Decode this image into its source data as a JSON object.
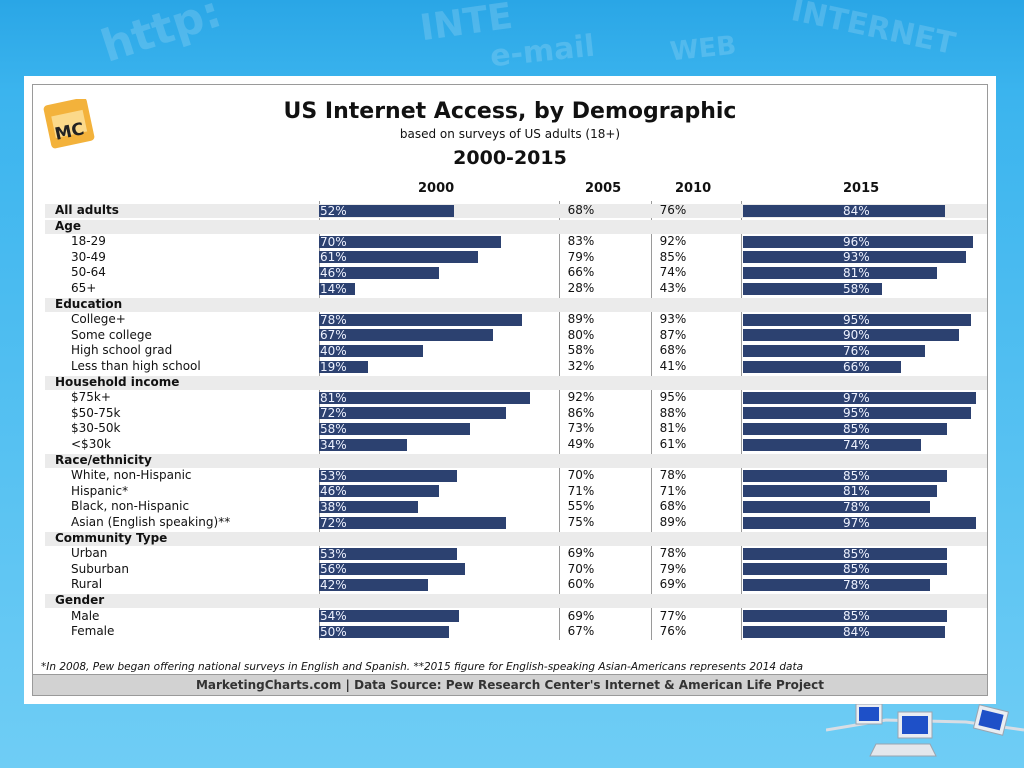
{
  "logo_text": "MC",
  "title": "US Internet Access, by Demographic",
  "subtitle": "based on surveys of US adults (18+)",
  "period": "2000-2015",
  "note": "*In 2008, Pew began offering national surveys in English and Spanish. **2015 figure for English-speaking Asian-Americans represents 2014 data",
  "footer": "MarketingCharts.com | Data Source: Pew Research Center's Internet & American Life Project",
  "colors": {
    "bar": "#2c4170",
    "group_row": "#ebebeb",
    "footer": "#d2d2d2"
  },
  "chart_data": {
    "type": "bar",
    "columns": [
      "2000",
      "2005",
      "2010",
      "2015"
    ],
    "rows": [
      {
        "label": "All adults",
        "kind": "top",
        "values": [
          "52%",
          "68%",
          "76%",
          "84%"
        ]
      },
      {
        "label": "Age",
        "kind": "group"
      },
      {
        "label": "18-29",
        "kind": "item",
        "values": [
          "70%",
          "83%",
          "92%",
          "96%"
        ]
      },
      {
        "label": "30-49",
        "kind": "item",
        "values": [
          "61%",
          "79%",
          "85%",
          "93%"
        ]
      },
      {
        "label": "50-64",
        "kind": "item",
        "values": [
          "46%",
          "66%",
          "74%",
          "81%"
        ]
      },
      {
        "label": "65+",
        "kind": "item",
        "values": [
          "14%",
          "28%",
          "43%",
          "58%"
        ]
      },
      {
        "label": "Education",
        "kind": "group"
      },
      {
        "label": "College+",
        "kind": "item",
        "values": [
          "78%",
          "89%",
          "93%",
          "95%"
        ]
      },
      {
        "label": "Some college",
        "kind": "item",
        "values": [
          "67%",
          "80%",
          "87%",
          "90%"
        ]
      },
      {
        "label": "High school grad",
        "kind": "item",
        "values": [
          "40%",
          "58%",
          "68%",
          "76%"
        ]
      },
      {
        "label": "Less than high school",
        "kind": "item",
        "values": [
          "19%",
          "32%",
          "41%",
          "66%"
        ]
      },
      {
        "label": "Household income",
        "kind": "group"
      },
      {
        "label": "$75k+",
        "kind": "item",
        "values": [
          "81%",
          "92%",
          "95%",
          "97%"
        ]
      },
      {
        "label": "$50-75k",
        "kind": "item",
        "values": [
          "72%",
          "86%",
          "88%",
          "95%"
        ]
      },
      {
        "label": "$30-50k",
        "kind": "item",
        "values": [
          "58%",
          "73%",
          "81%",
          "85%"
        ]
      },
      {
        "label": "<$30k",
        "kind": "item",
        "values": [
          "34%",
          "49%",
          "61%",
          "74%"
        ]
      },
      {
        "label": "Race/ethnicity",
        "kind": "group"
      },
      {
        "label": "White, non-Hispanic",
        "kind": "item",
        "values": [
          "53%",
          "70%",
          "78%",
          "85%"
        ]
      },
      {
        "label": "Hispanic*",
        "kind": "item",
        "values": [
          "46%",
          "71%",
          "71%",
          "81%"
        ]
      },
      {
        "label": "Black, non-Hispanic",
        "kind": "item",
        "values": [
          "38%",
          "55%",
          "68%",
          "78%"
        ]
      },
      {
        "label": "Asian (English speaking)**",
        "kind": "item",
        "values": [
          "72%",
          "75%",
          "89%",
          "97%"
        ]
      },
      {
        "label": "Community Type",
        "kind": "group"
      },
      {
        "label": "Urban",
        "kind": "item",
        "values": [
          "53%",
          "69%",
          "78%",
          "85%"
        ]
      },
      {
        "label": "Suburban",
        "kind": "item",
        "values": [
          "56%",
          "70%",
          "79%",
          "85%"
        ]
      },
      {
        "label": "Rural",
        "kind": "item",
        "values": [
          "42%",
          "60%",
          "69%",
          "78%"
        ]
      },
      {
        "label": "Gender",
        "kind": "group"
      },
      {
        "label": "Male",
        "kind": "item",
        "values": [
          "54%",
          "69%",
          "77%",
          "85%"
        ]
      },
      {
        "label": "Female",
        "kind": "item",
        "values": [
          "50%",
          "67%",
          "76%",
          "84%"
        ]
      }
    ]
  }
}
